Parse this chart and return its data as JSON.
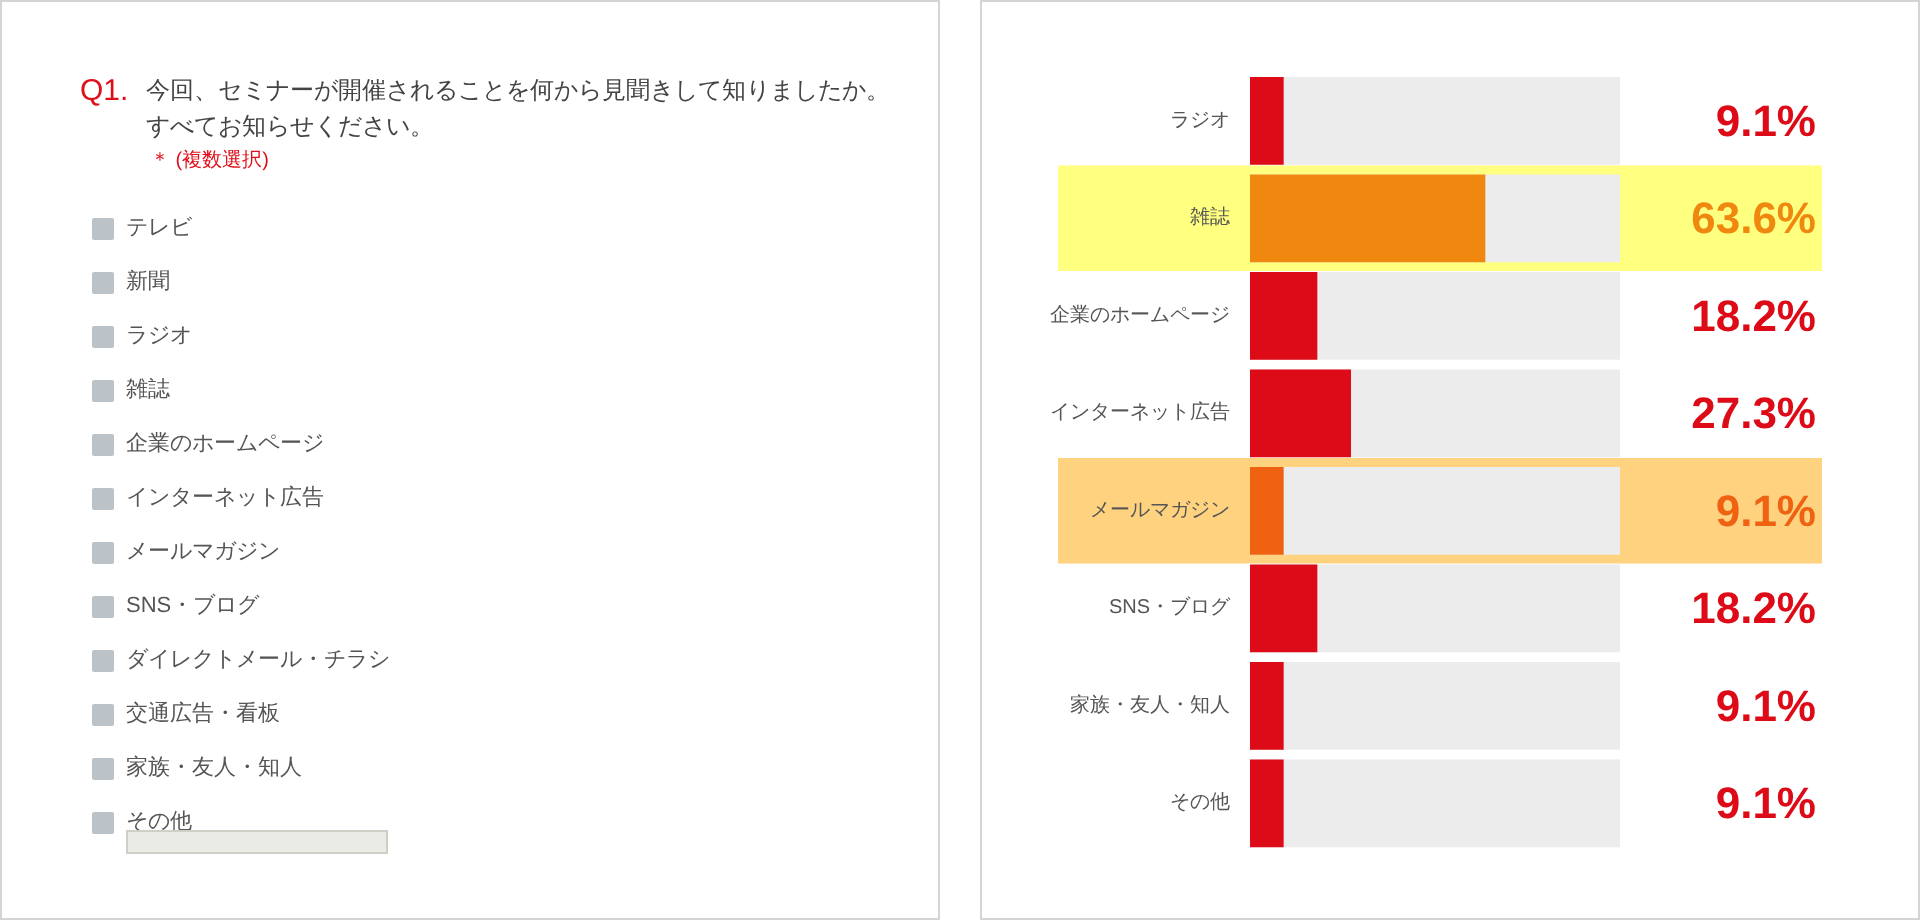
{
  "chart_data": [
    {
      "type": "other",
      "title": "Q1.",
      "subtitle": "今回、セミナーが開催されることを何から見聞きして知りましたか。すべてお知らせください。",
      "annotations": [
        "＊ (複数選択)"
      ],
      "categories": [
        "テレビ",
        "新聞",
        "ラジオ",
        "雑誌",
        "企業のホームページ",
        "インターネット広告",
        "メールマガジン",
        "SNS・ブログ",
        "ダイレクトメール・チラシ",
        "交通広告・看板",
        "家族・友人・知人",
        "その他"
      ]
    },
    {
      "type": "bar",
      "orientation": "horizontal",
      "categories": [
        "ラジオ",
        "雑誌",
        "企業のホームページ",
        "インターネット広告",
        "メールマガジン",
        "SNS・ブログ",
        "家族・友人・知人",
        "その他"
      ],
      "values": [
        9.1,
        63.6,
        18.2,
        27.3,
        9.1,
        18.2,
        9.1,
        9.1
      ],
      "colors": [
        "#dd0b17",
        "#f0870f",
        "#dd0b17",
        "#dd0b17",
        "#ee6212",
        "#dd0b17",
        "#dd0b17",
        "#dd0b17"
      ],
      "value_labels": [
        "9.1%",
        "63.6%",
        "18.2%",
        "27.3%",
        "9.1%",
        "18.2%",
        "9.1%",
        "9.1%"
      ],
      "xlim": [
        0,
        100
      ],
      "tick_labels": "y",
      "bands": [
        {
          "axis": "y",
          "from": "雑誌",
          "to": "雑誌",
          "color": "#ffff80"
        },
        {
          "axis": "y",
          "from": "メールマガジン",
          "to": "メールマガジン",
          "color": "#fed27e"
        }
      ]
    }
  ]
}
